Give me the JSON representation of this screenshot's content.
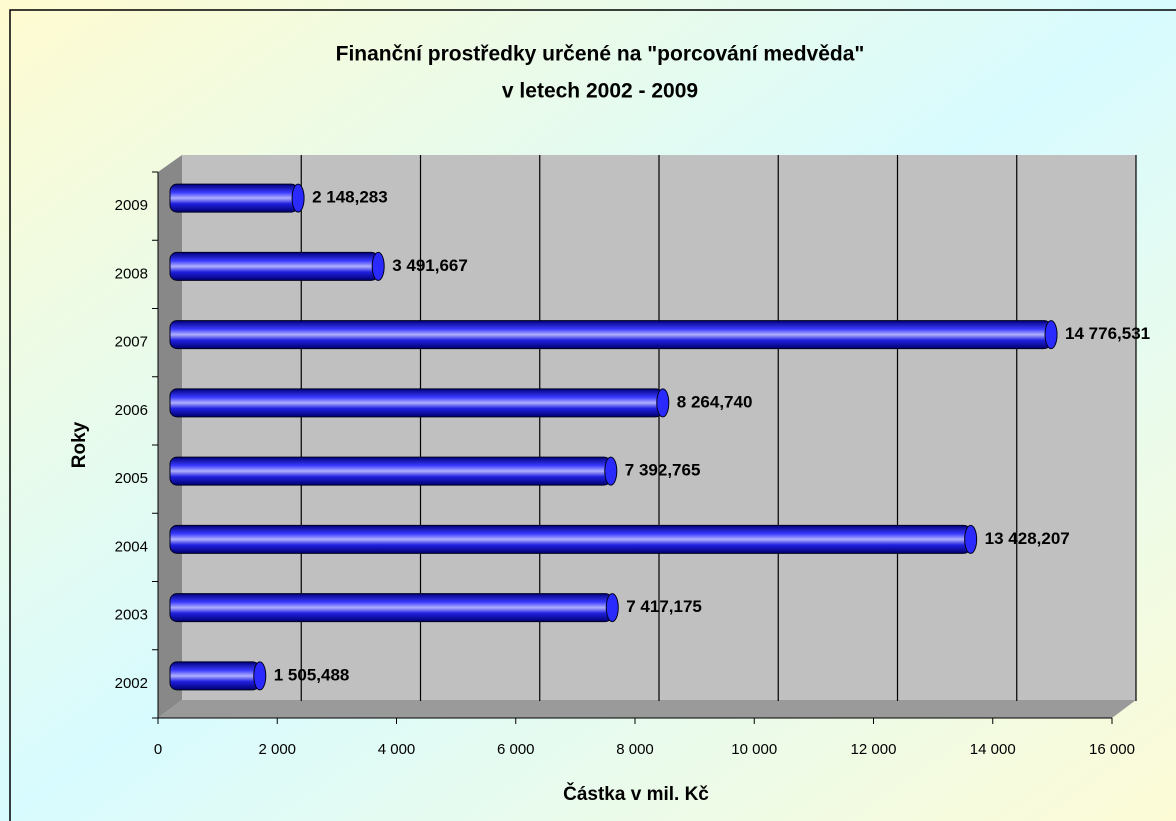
{
  "chart_data": {
    "type": "bar",
    "orientation": "horizontal",
    "title": [
      "Finanční prostředky určené na \"porcování medvěda\"",
      "v letech 2002 - 2009"
    ],
    "y_label": "Roky",
    "x_label": "Částka v mil. Kč",
    "categories": [
      "2002",
      "2003",
      "2004",
      "2005",
      "2006",
      "2007",
      "2008",
      "2009"
    ],
    "values": [
      1505.488,
      7417.175,
      13428.207,
      7392.765,
      8264.74,
      14776.531,
      3491.667,
      2148.283
    ],
    "value_labels": [
      "1 505,488",
      "7 417,175",
      "13 428,207",
      "7 392,765",
      "8 264,740",
      "14 776,531",
      "3 491,667",
      "2 148,283"
    ],
    "color": "#0a0ad8",
    "xlim": [
      0,
      16000
    ],
    "xticks": [
      0,
      {
        "value": 2000,
        "label": "2 000"
      },
      {
        "value": 4000,
        "label": "4 000"
      },
      {
        "value": 6000,
        "label": "6 000"
      },
      {
        "value": 8000,
        "label": "8 000"
      },
      {
        "value": 10000,
        "label": "10 000"
      },
      {
        "value": 12000,
        "label": "12 000"
      },
      {
        "value": 14000,
        "label": "14 000"
      },
      {
        "value": 16000,
        "label": "16 000"
      }
    ],
    "grid": true
  }
}
